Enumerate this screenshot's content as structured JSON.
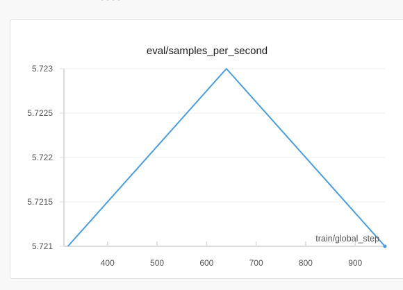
{
  "chart_data": {
    "type": "line",
    "title": "eval/samples_per_second",
    "xlabel": "train/global_step",
    "ylabel": "",
    "xlim": [
      312,
      960
    ],
    "ylim": [
      5.721,
      5.723
    ],
    "x_ticks": [
      400,
      500,
      600,
      700,
      800,
      900
    ],
    "y_ticks": [
      5.721,
      5.7215,
      5.722,
      5.7225,
      5.723
    ],
    "y_tick_labels": [
      "5.721",
      "5.7215",
      "5.722",
      "5.7225",
      "5.723"
    ],
    "grid": true,
    "series": [
      {
        "color": "#4a9de0",
        "x": [
          320,
          640,
          960
        ],
        "y": [
          5.721,
          5.723,
          5.721
        ]
      }
    ]
  }
}
